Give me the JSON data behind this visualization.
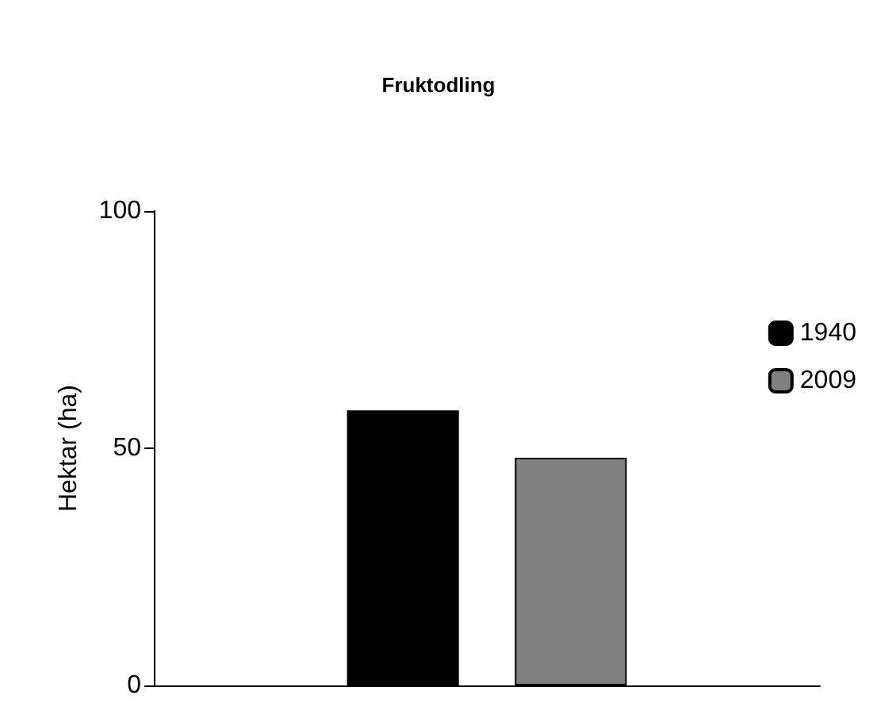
{
  "chart_data": {
    "type": "bar",
    "title": "Fruktodling",
    "ylabel": "Hektar (ha)",
    "categories": [
      null
    ],
    "series": [
      {
        "name": "1940",
        "color": "#000000",
        "values": [
          58
        ]
      },
      {
        "name": "2009",
        "color": "#808080",
        "values": [
          48
        ]
      }
    ],
    "ylim": [
      0,
      100
    ],
    "yticks": [
      0,
      50,
      100
    ],
    "grid": false,
    "legend": "right"
  }
}
